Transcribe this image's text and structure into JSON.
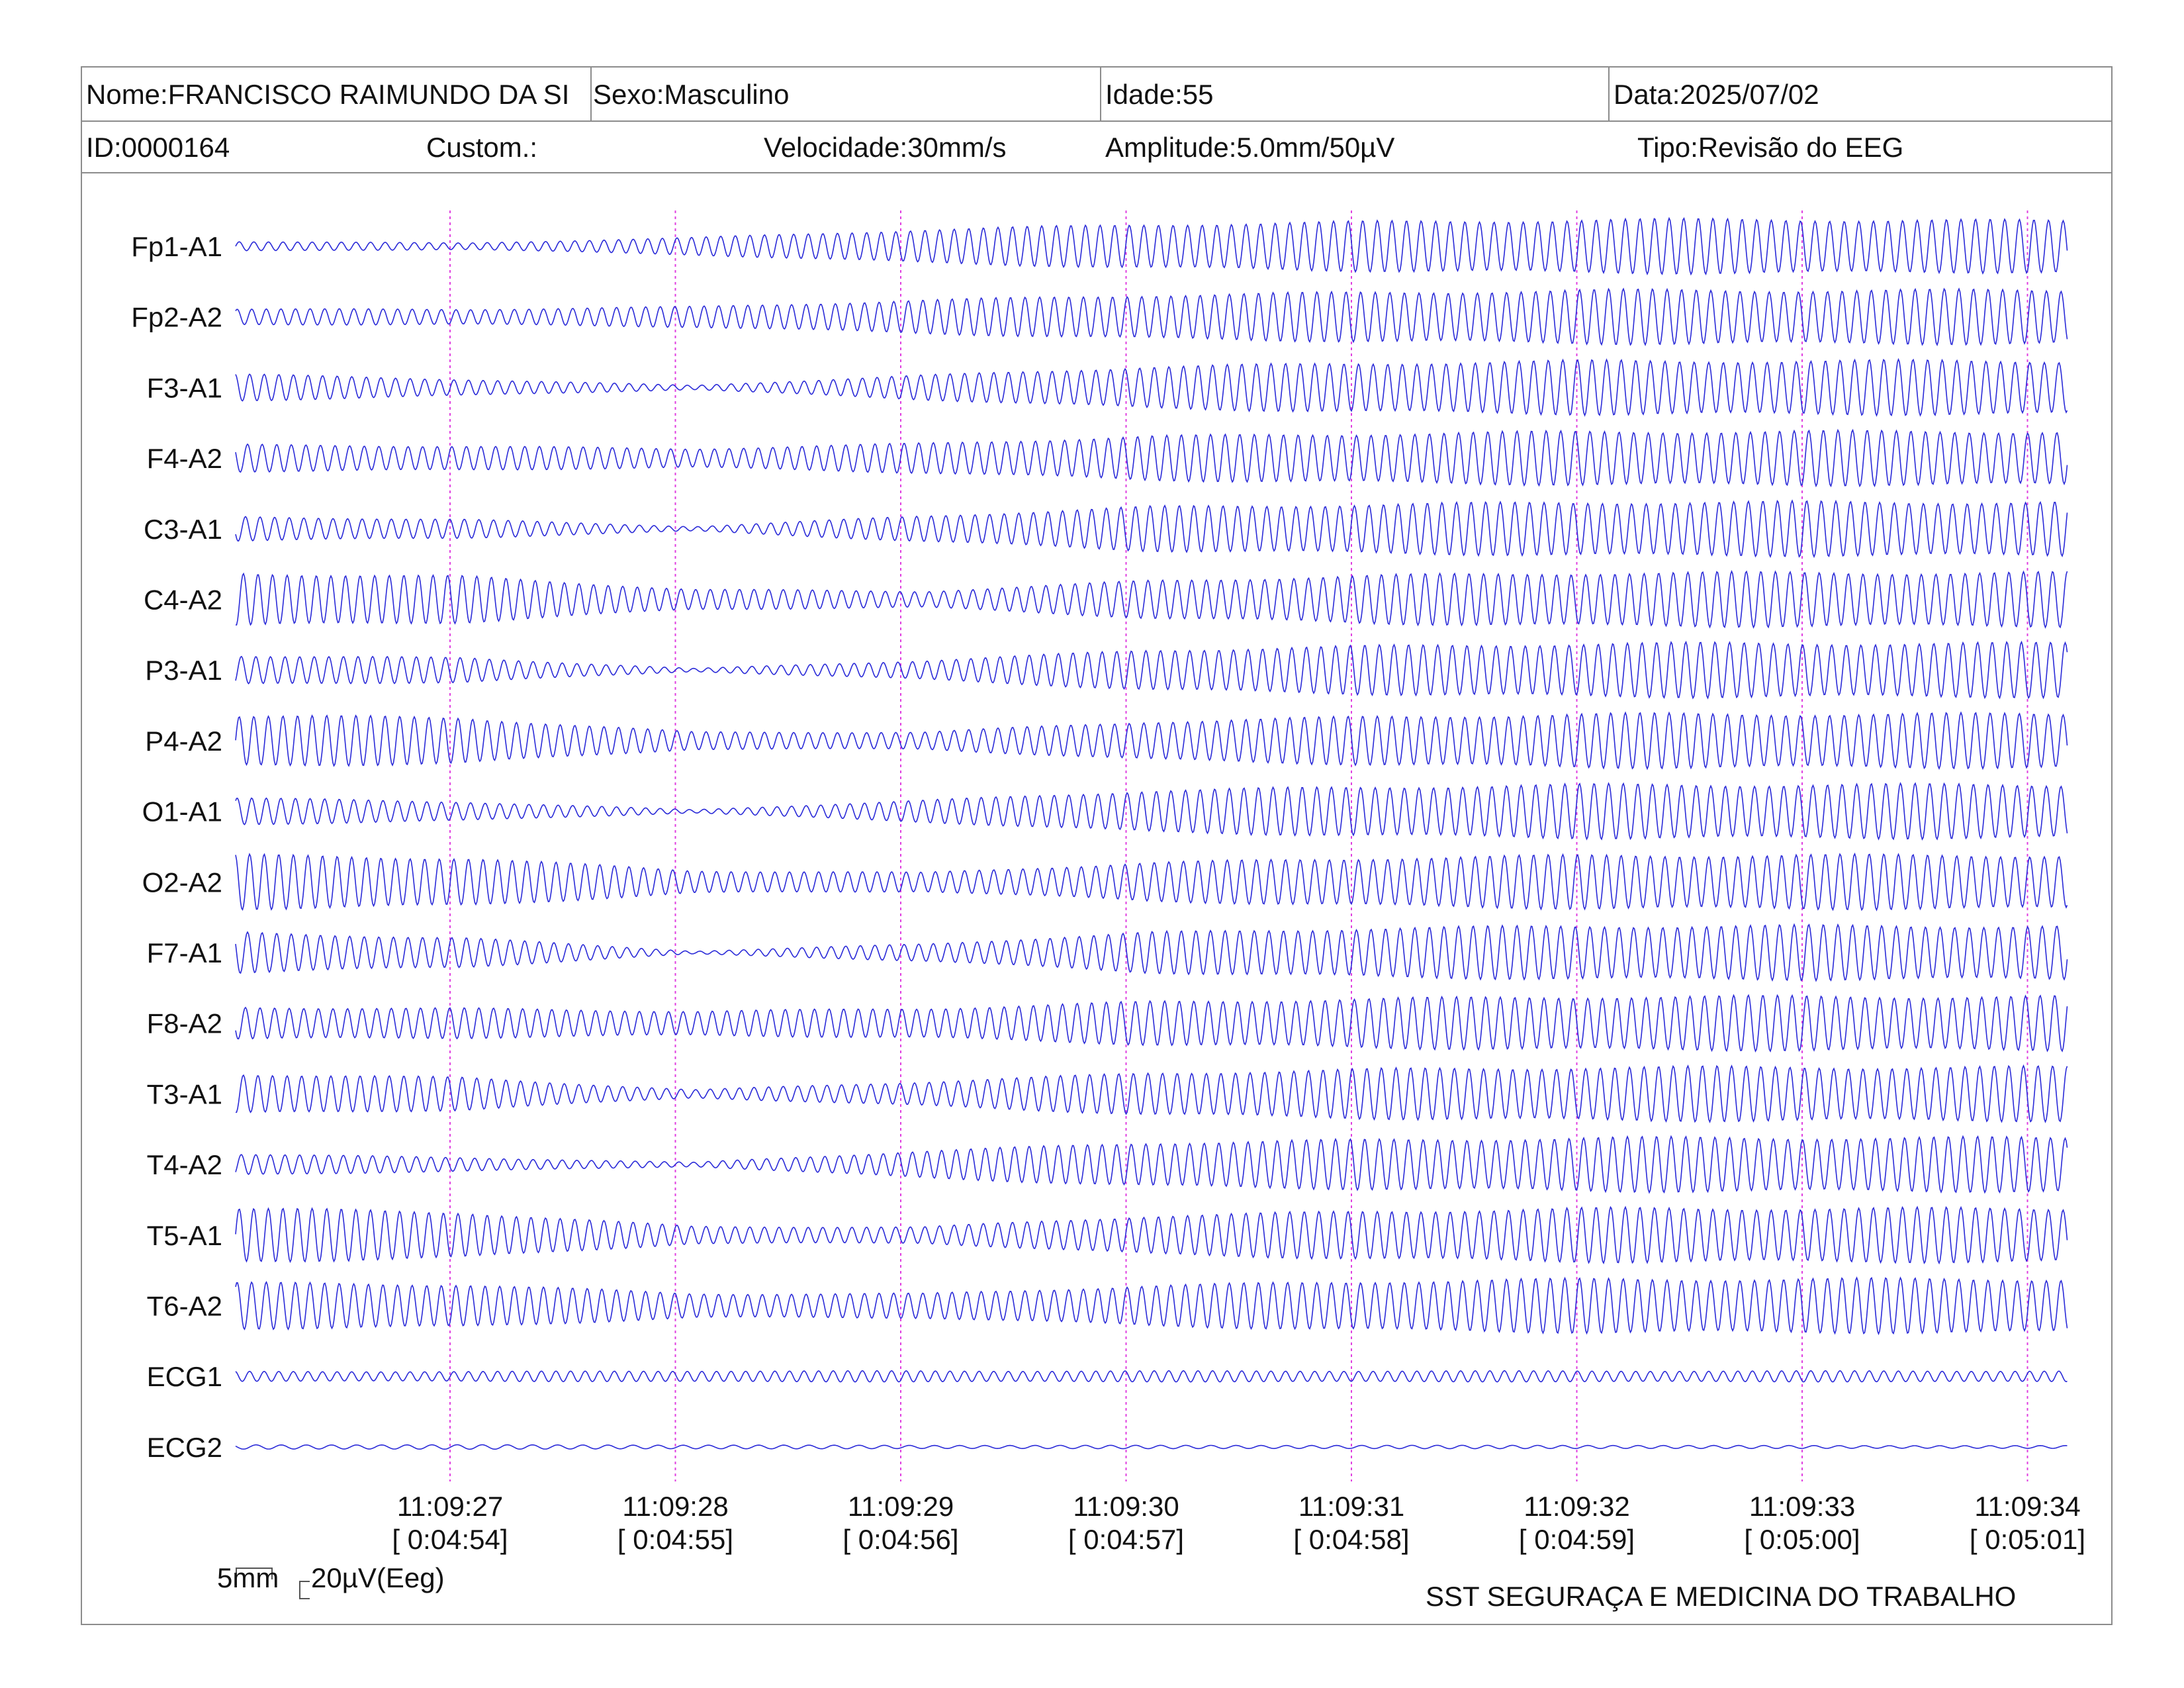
{
  "header": {
    "nome": "Nome:FRANCISCO RAIMUNDO DA SI",
    "sexo": "Sexo:Masculino",
    "idade": "Idade:55",
    "data": "Data:2025/07/02",
    "id": "ID:0000164",
    "custom": "Custom.:",
    "velocidade": "Velocidade:30mm/s",
    "amplitude": "Amplitude:5.0mm/50µV",
    "tipo": "Tipo:Revisão do EEG"
  },
  "footer": {
    "organization": "SST SEGURAÇA E MEDICINA DO TRABALHO",
    "scale_time_label": "5mm",
    "scale_amplitude_label": "20µV(Eeg)"
  },
  "colors": {
    "trace": "#2a2ad8",
    "marker": "#e040e0",
    "border": "#8c8c8c",
    "text": "#111111"
  },
  "chart_data": {
    "type": "line",
    "title": "",
    "xlabel": "",
    "ylabel": "",
    "grid": false,
    "x_range_seconds": [
      0,
      8.1
    ],
    "time_markers": [
      {
        "clock": "11:09:27",
        "elapsed": "[ 0:04:54]"
      },
      {
        "clock": "11:09:28",
        "elapsed": "[ 0:04:55]"
      },
      {
        "clock": "11:09:29",
        "elapsed": "[ 0:04:56]"
      },
      {
        "clock": "11:09:30",
        "elapsed": "[ 0:04:57]"
      },
      {
        "clock": "11:09:31",
        "elapsed": "[ 0:04:58]"
      },
      {
        "clock": "11:09:32",
        "elapsed": "[ 0:04:59]"
      },
      {
        "clock": "11:09:33",
        "elapsed": "[ 0:05:00]"
      },
      {
        "clock": "11:09:34",
        "elapsed": "[ 0:05:01]"
      }
    ],
    "channels": [
      {
        "name": "Fp1-A1",
        "cycles_per_second": 15.5,
        "amplitude_envelope": [
          0.18,
          0.12,
          0.32,
          0.62,
          0.82,
          0.92,
          1.0,
          1.0,
          0.95
        ]
      },
      {
        "name": "Fp2-A2",
        "cycles_per_second": 15.5,
        "amplitude_envelope": [
          0.3,
          0.28,
          0.38,
          0.62,
          0.82,
          0.92,
          1.0,
          1.0,
          1.0
        ]
      },
      {
        "name": "F3-A1",
        "cycles_per_second": 15.5,
        "amplitude_envelope": [
          0.5,
          0.3,
          0.08,
          0.45,
          0.78,
          0.92,
          1.0,
          1.0,
          1.0
        ]
      },
      {
        "name": "F4-A2",
        "cycles_per_second": 15.5,
        "amplitude_envelope": [
          0.5,
          0.45,
          0.35,
          0.55,
          0.82,
          0.92,
          1.0,
          1.0,
          1.0
        ]
      },
      {
        "name": "C3-A1",
        "cycles_per_second": 15.5,
        "amplitude_envelope": [
          0.45,
          0.35,
          0.08,
          0.48,
          0.82,
          0.92,
          1.0,
          1.0,
          1.0
        ]
      },
      {
        "name": "C4-A2",
        "cycles_per_second": 15.5,
        "amplitude_envelope": [
          1.0,
          0.85,
          0.38,
          0.3,
          0.7,
          0.9,
          1.0,
          1.0,
          1.0
        ]
      },
      {
        "name": "P3-A1",
        "cycles_per_second": 15.5,
        "amplitude_envelope": [
          0.55,
          0.45,
          0.06,
          0.35,
          0.75,
          0.9,
          1.0,
          1.0,
          1.0
        ]
      },
      {
        "name": "P4-A2",
        "cycles_per_second": 15.5,
        "amplitude_envelope": [
          0.95,
          0.85,
          0.32,
          0.32,
          0.72,
          0.9,
          1.0,
          1.0,
          1.0
        ]
      },
      {
        "name": "O1-A1",
        "cycles_per_second": 15.5,
        "amplitude_envelope": [
          0.5,
          0.35,
          0.06,
          0.4,
          0.78,
          0.92,
          1.0,
          1.0,
          1.0
        ]
      },
      {
        "name": "O2-A2",
        "cycles_per_second": 15.5,
        "amplitude_envelope": [
          1.0,
          0.9,
          0.42,
          0.35,
          0.72,
          0.9,
          1.0,
          1.0,
          1.0
        ]
      },
      {
        "name": "F7-A1",
        "cycles_per_second": 15.5,
        "amplitude_envelope": [
          0.75,
          0.55,
          0.05,
          0.32,
          0.75,
          0.92,
          1.0,
          1.0,
          1.0
        ]
      },
      {
        "name": "F8-A2",
        "cycles_per_second": 15.5,
        "amplitude_envelope": [
          0.6,
          0.55,
          0.45,
          0.55,
          0.8,
          0.92,
          1.0,
          1.0,
          1.0
        ]
      },
      {
        "name": "T3-A1",
        "cycles_per_second": 15.5,
        "amplitude_envelope": [
          0.75,
          0.6,
          0.15,
          0.45,
          0.78,
          0.92,
          1.0,
          1.0,
          1.0
        ]
      },
      {
        "name": "T4-A2",
        "cycles_per_second": 15.5,
        "amplitude_envelope": [
          0.4,
          0.25,
          0.08,
          0.5,
          0.82,
          0.92,
          1.0,
          1.0,
          1.0
        ]
      },
      {
        "name": "T5-A1",
        "cycles_per_second": 15.5,
        "amplitude_envelope": [
          1.0,
          0.85,
          0.32,
          0.3,
          0.72,
          0.9,
          1.0,
          1.0,
          1.0
        ]
      },
      {
        "name": "T6-A2",
        "cycles_per_second": 15.5,
        "amplitude_envelope": [
          0.85,
          0.8,
          0.45,
          0.45,
          0.75,
          0.92,
          1.0,
          1.0,
          1.0
        ]
      },
      {
        "name": "ECG1",
        "cycles_per_second": 15.5,
        "amplitude_envelope": [
          0.18,
          0.18,
          0.2,
          0.2,
          0.2,
          0.2,
          0.2,
          0.2,
          0.2
        ]
      },
      {
        "name": "ECG2",
        "cycles_per_second": 9,
        "amplitude_envelope": [
          0.08,
          0.08,
          0.07,
          0.06,
          0.06,
          0.06,
          0.06,
          0.05,
          0.05
        ]
      }
    ]
  }
}
